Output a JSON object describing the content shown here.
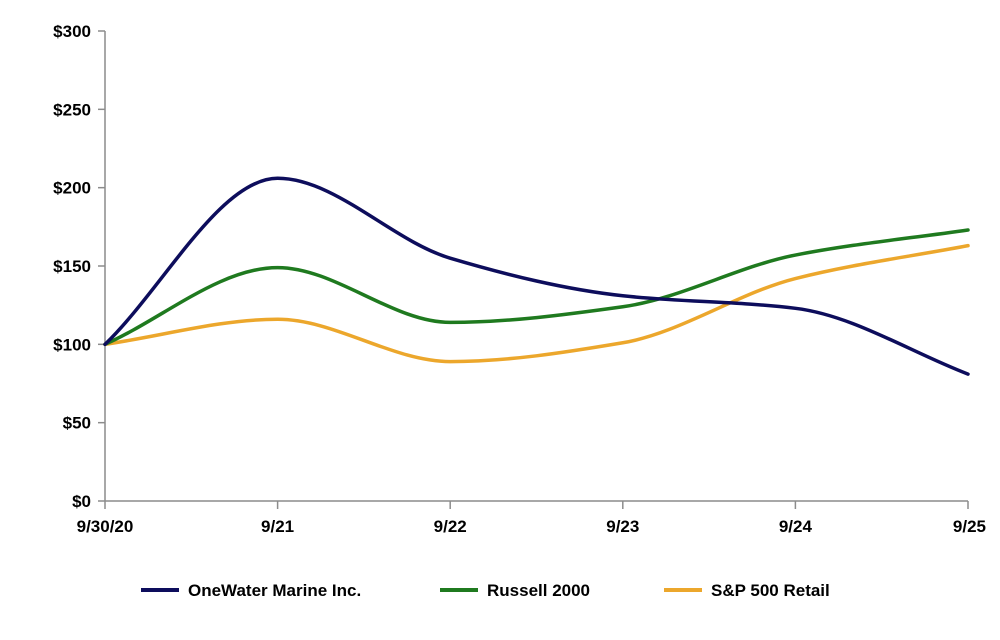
{
  "chart_data": {
    "type": "line",
    "title": "",
    "xlabel": "",
    "ylabel": "",
    "categories": [
      "9/30/20",
      "9/21",
      "9/22",
      "9/23",
      "9/24",
      "9/25"
    ],
    "y_ticks": [
      "$0",
      "$50",
      "$100",
      "$150",
      "$200",
      "$250",
      "$300"
    ],
    "y_tick_values": [
      0,
      50,
      100,
      150,
      200,
      250,
      300
    ],
    "ylim": [
      0,
      300
    ],
    "grid": false,
    "legend_position": "bottom",
    "series": [
      {
        "name": "OneWater Marine Inc.",
        "color": "#0d0d5c",
        "values": [
          100,
          206,
          155,
          131,
          123,
          81
        ]
      },
      {
        "name": "Russell 2000",
        "color": "#1f7a1f",
        "values": [
          100,
          149,
          114,
          124,
          157,
          173
        ]
      },
      {
        "name": "S&P 500 Retail",
        "color": "#eca72c",
        "values": [
          100,
          116,
          89,
          101,
          142,
          163
        ]
      }
    ]
  }
}
